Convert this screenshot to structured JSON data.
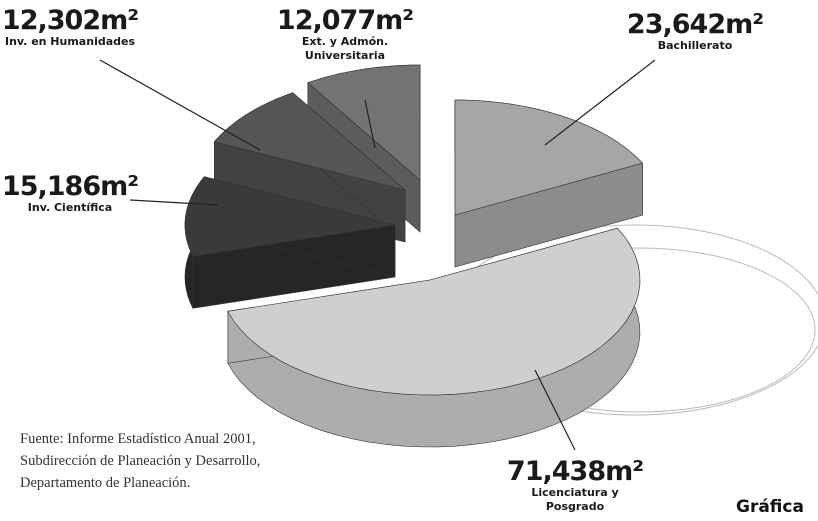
{
  "figure_label": "Gráfica",
  "source_lines": [
    "Fuente: Informe Estadístico Anual 2001,",
    "Subdirección de Planeación y Desarrollo,",
    "Departamento de Planeación."
  ],
  "chart_data": {
    "type": "pie",
    "unit": "m²",
    "slices": [
      {
        "label": "Bachillerato",
        "value": 23642,
        "value_label": "23,642m²",
        "color": "#a6a6a6",
        "side": "#8c8c8c"
      },
      {
        "label": "Licenciatura y Posgrado",
        "value": 71438,
        "value_label": "71,438m²",
        "color": "#cfcfcf",
        "side": "#adadad"
      },
      {
        "label": "Inv. Científica",
        "value": 15186,
        "value_label": "15,186m²",
        "color": "#3a3a3a",
        "side": "#262626"
      },
      {
        "label": "Inv. en Humanidades",
        "value": 12302,
        "value_label": "12,302m²",
        "color": "#555555",
        "side": "#424242"
      },
      {
        "label": "Ext. y Admón. Universitaria",
        "value": 12077,
        "value_label": "12,077m²",
        "color": "#737373",
        "side": "#5c5c5c"
      }
    ]
  }
}
